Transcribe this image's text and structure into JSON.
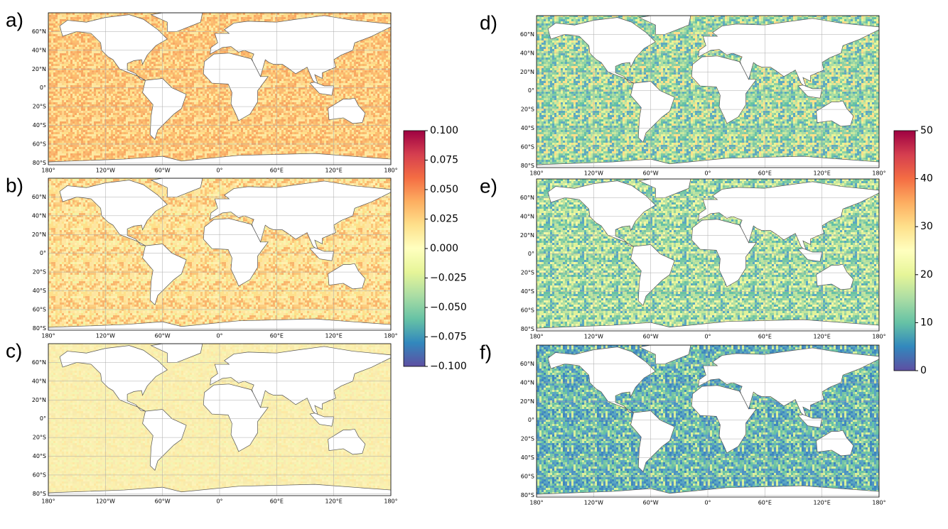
{
  "panels": [
    {
      "label": "a)"
    },
    {
      "label": "b)"
    },
    {
      "label": "c)"
    },
    {
      "label": "d)"
    },
    {
      "label": "e)"
    },
    {
      "label": "f)"
    }
  ],
  "map_axes": {
    "xlim": [
      -180,
      180
    ],
    "ylim": [
      -82,
      80
    ],
    "xticks": [
      {
        "value": -180,
        "label": "180°"
      },
      {
        "value": -120,
        "label": "120°W"
      },
      {
        "value": -60,
        "label": "60°W"
      },
      {
        "value": 0,
        "label": "0°"
      },
      {
        "value": 60,
        "label": "60°E"
      },
      {
        "value": 120,
        "label": "120°E"
      },
      {
        "value": 180,
        "label": "180°"
      }
    ],
    "yticks": [
      {
        "value": 60,
        "label": "60°N"
      },
      {
        "value": 40,
        "label": "40°N"
      },
      {
        "value": 20,
        "label": "20°N"
      },
      {
        "value": 0,
        "label": "0°"
      },
      {
        "value": -20,
        "label": "20°S"
      },
      {
        "value": -40,
        "label": "40°S"
      },
      {
        "value": -60,
        "label": "60°S"
      },
      {
        "value": -80,
        "label": "80°S"
      }
    ]
  },
  "colorbars": [
    {
      "lim": [
        -0.1,
        0.1
      ],
      "ticks": [
        {
          "value": 0.1,
          "label": "0.100"
        },
        {
          "value": 0.075,
          "label": "0.075"
        },
        {
          "value": 0.05,
          "label": "0.050"
        },
        {
          "value": 0.025,
          "label": "0.025"
        },
        {
          "value": 0,
          "label": "0.000"
        },
        {
          "value": -0.025,
          "label": "−0.025"
        },
        {
          "value": -0.05,
          "label": "−0.050"
        },
        {
          "value": -0.075,
          "label": "−0.075"
        },
        {
          "value": -0.1,
          "label": "−0.100"
        }
      ]
    },
    {
      "lim": [
        0,
        50
      ],
      "ticks": [
        0,
        10,
        20,
        30,
        40,
        50
      ]
    }
  ]
}
